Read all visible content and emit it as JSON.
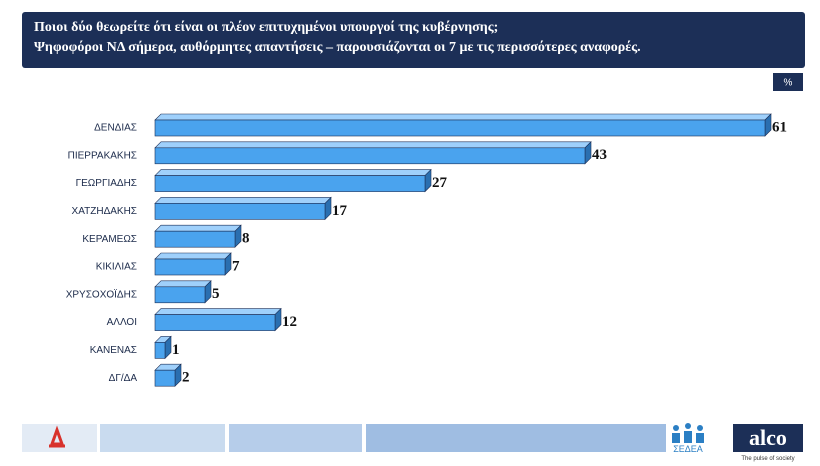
{
  "chart_data": {
    "type": "bar",
    "orientation": "horizontal",
    "title": "Ποιοι δύο θεωρείτε ότι είναι οι πλέον επιτυχημένοι υπουργοί της κυβέρνησης;",
    "subtitle": "Ψηφοφόροι ΝΔ σήμερα, αυθόρμητες απαντήσεις – παρουσιάζονται οι 7 με τις περισσότερες αναφορές.",
    "unit": "%",
    "categories": [
      "ΔΕΝΔΙΑΣ",
      "ΠΙΕΡΡΑΚΑΚΗΣ",
      "ΓΕΩΡΓΙΑΔΗΣ",
      "ΧΑΤΖΗΔΑΚΗΣ",
      "ΚΕΡΑΜΕΩΣ",
      "ΚΙΚΙΛΙΑΣ",
      "ΧΡΥΣΟΧΟΪΔΗΣ",
      "ΑΛΛΟΙ",
      "ΚΑΝΕΝΑΣ",
      "ΔΓ/ΔΑ"
    ],
    "values": [
      61,
      43,
      27,
      17,
      8,
      7,
      5,
      12,
      1,
      2
    ],
    "color": "#4aa3ee"
  },
  "footer": {
    "brand": "alco",
    "tagline": "The pulse of society",
    "partner": "ΣΕΔΕΑ"
  }
}
